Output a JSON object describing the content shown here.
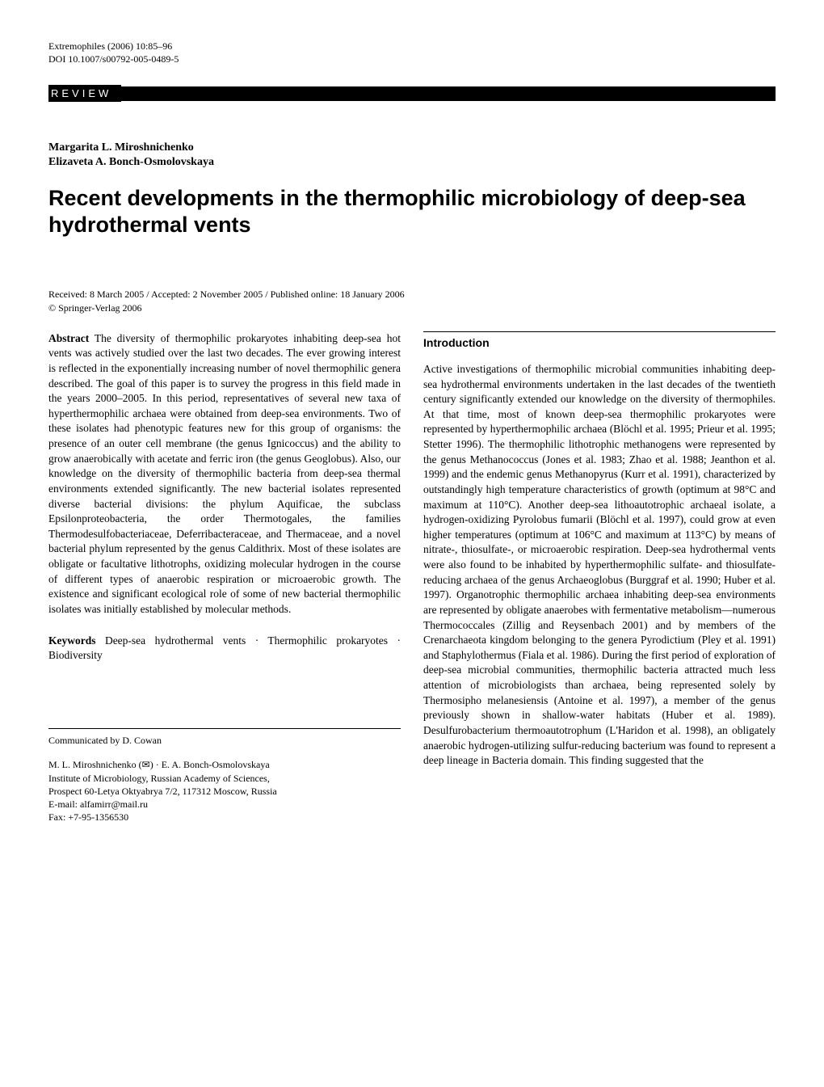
{
  "header": {
    "journal": "Extremophiles (2006) 10:85–96",
    "doi": "DOI 10.1007/s00792-005-0489-5"
  },
  "articleType": "REVIEW",
  "authors": {
    "line1": "Margarita L. Miroshnichenko",
    "line2": "Elizaveta A. Bonch-Osmolovskaya"
  },
  "title": "Recent developments in the thermophilic microbiology of deep-sea hydrothermal vents",
  "received": {
    "line1": "Received: 8 March 2005 / Accepted: 2 November 2005 / Published online: 18 January 2006",
    "line2": "© Springer-Verlag 2006"
  },
  "abstract": {
    "label": "Abstract",
    "text": " The diversity of thermophilic prokaryotes inhabiting deep-sea hot vents was actively studied over the last two decades. The ever growing interest is reflected in the exponentially increasing number of novel thermophilic genera described. The goal of this paper is to survey the progress in this field made in the years 2000–2005. In this period, representatives of several new taxa of hyperthermophilic archaea were obtained from deep-sea environments. Two of these isolates had phenotypic features new for this group of organisms: the presence of an outer cell membrane (the genus Ignicoccus) and the ability to grow anaerobically with acetate and ferric iron (the genus Geoglobus). Also, our knowledge on the diversity of thermophilic bacteria from deep-sea thermal environments extended significantly. The new bacterial isolates represented diverse bacterial divisions: the phylum Aquificae, the subclass Epsilonproteobacteria, the order Thermotogales, the families Thermodesulfobacteriaceae, Deferribacteraceae, and Thermaceae, and a novel bacterial phylum represented by the genus Caldithrix. Most of these isolates are obligate or facultative lithotrophs, oxidizing molecular hydrogen in the course of different types of anaerobic respiration or microaerobic growth. The existence and significant ecological role of some of new bacterial thermophilic isolates was initially established by molecular methods."
  },
  "keywords": {
    "label": "Keywords",
    "text": " Deep-sea hydrothermal vents · Thermophilic prokaryotes · Biodiversity"
  },
  "communicated": "Communicated by D. Cowan",
  "affiliation": {
    "line1": "M. L. Miroshnichenko (✉) · E. A. Bonch-Osmolovskaya",
    "line2": "Institute of Microbiology, Russian Academy of Sciences,",
    "line3": "Prospect 60-Letya Oktyabrya 7/2, 117312 Moscow, Russia",
    "line4": "E-mail: alfamirr@mail.ru",
    "line5": "Fax: +7-95-1356530"
  },
  "introduction": {
    "heading": "Introduction",
    "text": "Active investigations of thermophilic microbial communities inhabiting deep-sea hydrothermal environments undertaken in the last decades of the twentieth century significantly extended our knowledge on the diversity of thermophiles. At that time, most of known deep-sea thermophilic prokaryotes were represented by hyperthermophilic archaea (Blöchl et al. 1995; Prieur et al. 1995; Stetter 1996). The thermophilic lithotrophic methanogens were represented by the genus Methanococcus (Jones et al. 1983; Zhao et al. 1988; Jeanthon et al. 1999) and the endemic genus Methanopyrus (Kurr et al. 1991), characterized by outstandingly high temperature characteristics of growth (optimum at 98°C and maximum at 110°C). Another deep-sea lithoautotrophic archaeal isolate, a hydrogen-oxidizing Pyrolobus fumarii (Blöchl et al. 1997), could grow at even higher temperatures (optimum at 106°C and maximum at 113°C) by means of nitrate-, thiosulfate-, or microaerobic respiration. Deep-sea hydrothermal vents were also found to be inhabited by hyperthermophilic sulfate- and thiosulfate-reducing archaea of the genus Archaeoglobus (Burggraf et al. 1990; Huber et al. 1997). Organotrophic thermophilic archaea inhabiting deep-sea environments are represented by obligate anaerobes with fermentative metabolism—numerous Thermococcales (Zillig and Reysenbach 2001) and by members of the Crenarchaeota kingdom belonging to the genera Pyrodictium (Pley et al. 1991) and Staphylothermus (Fiala et al. 1986). During the first period of exploration of deep-sea microbial communities, thermophilic bacteria attracted much less attention of microbiologists than archaea, being represented solely by Thermosipho melanesiensis (Antoine et al. 1997), a member of the genus previously shown in shallow-water habitats (Huber et al. 1989). Desulfurobacterium thermoautotrophum (L'Haridon et al. 1998), an obligately anaerobic hydrogen-utilizing sulfur-reducing bacterium was found to represent a deep lineage in Bacteria domain. This finding suggested that the"
  }
}
